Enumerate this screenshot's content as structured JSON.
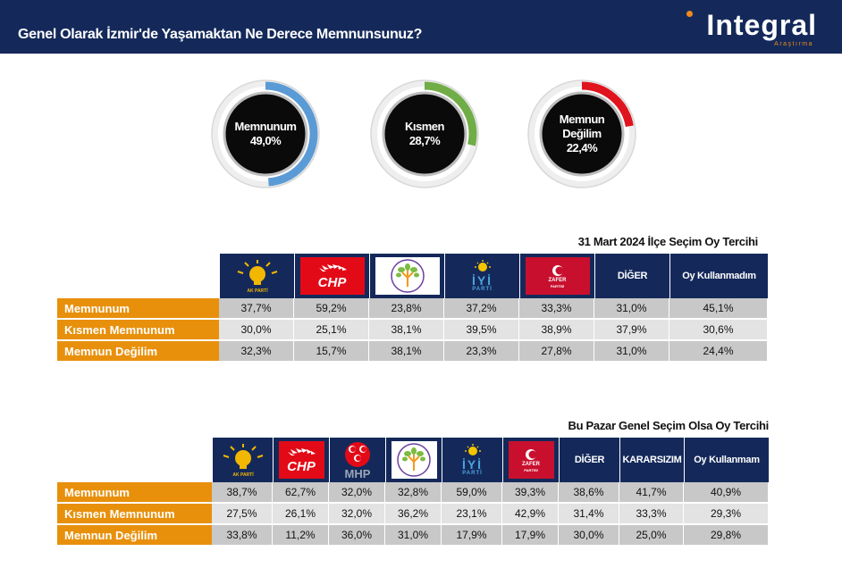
{
  "header": {
    "title": "Genel Olarak İzmir'de Yaşamaktan Ne Derece Memnunsunuz?",
    "brand_name": "Integral",
    "brand_sub": "Araştırma"
  },
  "colors": {
    "header_bg": "#14295a",
    "row_label_bg": "#e8900c",
    "memnunum": "#5b9bd5",
    "kismen": "#70ad47",
    "memnun_degilim": "#e0141e"
  },
  "chart_data": [
    {
      "type": "pie",
      "title": "Genel Olarak İzmir'de Yaşamaktan Ne Derece Memnunsunuz?",
      "slices": [
        {
          "label": "Memnunum",
          "value": 49.0,
          "display": "49,0%",
          "color": "#5b9bd5"
        },
        {
          "label": "Kısmen",
          "value": 28.7,
          "display": "28,7%",
          "color": "#70ad47"
        },
        {
          "label": "Memnun Değilim",
          "value": 22.4,
          "display": "22,4%",
          "color": "#e0141e"
        }
      ]
    },
    {
      "type": "table",
      "title": "31 Mart 2024 İlçe Seçim Oy Tercihi",
      "columns": [
        {
          "label": "AK PARTİ",
          "logo": "akp-logo"
        },
        {
          "label": "CHP",
          "logo": "chp-logo"
        },
        {
          "label": "",
          "logo": "dem-logo"
        },
        {
          "label": "İYİ PARTİ",
          "logo": "iyi-logo"
        },
        {
          "label": "ZAFER PARTİSİ",
          "logo": "zafer-logo"
        },
        {
          "label": "DİĞER",
          "logo": ""
        },
        {
          "label": "Oy Kullanmadım",
          "logo": ""
        }
      ],
      "rows": [
        {
          "label": "Memnunum",
          "values": [
            "37,7%",
            "59,2%",
            "23,8%",
            "37,2%",
            "33,3%",
            "31,0%",
            "45,1%"
          ]
        },
        {
          "label": "Kısmen Memnunum",
          "values": [
            "30,0%",
            "25,1%",
            "38,1%",
            "39,5%",
            "38,9%",
            "37,9%",
            "30,6%"
          ]
        },
        {
          "label": "Memnun Değilim",
          "values": [
            "32,3%",
            "15,7%",
            "38,1%",
            "23,3%",
            "27,8%",
            "31,0%",
            "24,4%"
          ]
        }
      ]
    },
    {
      "type": "table",
      "title": "Bu Pazar Genel Seçim Olsa Oy Tercihi",
      "columns": [
        {
          "label": "AK PARTİ",
          "logo": "akp-logo"
        },
        {
          "label": "CHP",
          "logo": "chp-logo"
        },
        {
          "label": "MHP",
          "logo": "mhp-logo"
        },
        {
          "label": "",
          "logo": "dem-logo"
        },
        {
          "label": "İYİ PARTİ",
          "logo": "iyi-logo"
        },
        {
          "label": "ZAFER PARTİSİ",
          "logo": "zafer-logo"
        },
        {
          "label": "DİĞER",
          "logo": ""
        },
        {
          "label": "KARARSIZIM",
          "logo": ""
        },
        {
          "label": "Oy Kullanmam",
          "logo": ""
        }
      ],
      "rows": [
        {
          "label": "Memnunum",
          "values": [
            "38,7%",
            "62,7%",
            "32,0%",
            "32,8%",
            "59,0%",
            "39,3%",
            "38,6%",
            "41,7%",
            "40,9%"
          ]
        },
        {
          "label": "Kısmen Memnunum",
          "values": [
            "27,5%",
            "26,1%",
            "32,0%",
            "36,2%",
            "23,1%",
            "42,9%",
            "31,4%",
            "33,3%",
            "29,3%"
          ]
        },
        {
          "label": "Memnun Değilim",
          "values": [
            "33,8%",
            "11,2%",
            "36,0%",
            "31,0%",
            "17,9%",
            "17,9%",
            "30,0%",
            "25,0%",
            "29,8%"
          ]
        }
      ]
    }
  ]
}
